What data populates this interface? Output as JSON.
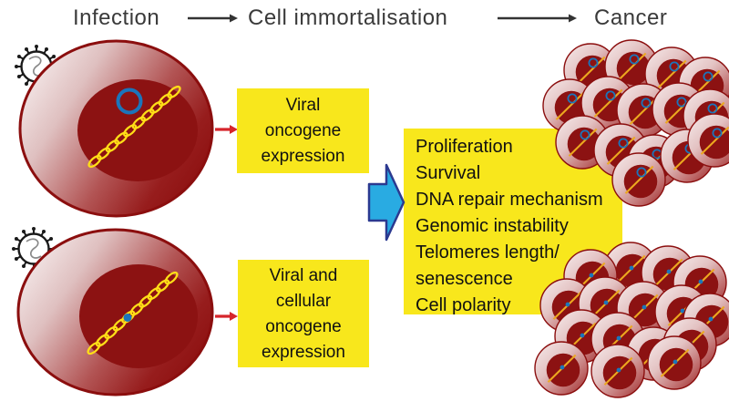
{
  "header": {
    "stages": [
      {
        "label": "Infection"
      },
      {
        "label": "Cell immortalisation"
      },
      {
        "label": "Cancer"
      }
    ]
  },
  "boxes": {
    "viral": {
      "lines": [
        "Viral",
        "oncogene",
        "expression"
      ]
    },
    "viral_cellular": {
      "lines": [
        "Viral and",
        "cellular",
        "oncogene",
        "expression"
      ]
    },
    "hallmarks": {
      "lines": [
        "Proliferation",
        "Survival",
        "DNA repair mechanism",
        "Genomic instability",
        "Telomeres length/",
        "senescence",
        "Cell polarity"
      ]
    }
  },
  "icon_names": [
    "virus-icon",
    "dna-strand-icon",
    "episome-ring-icon",
    "integrated-dna-dot-icon",
    "flow-arrow-icon",
    "red-arrow-icon",
    "block-arrow-icon",
    "infected-cell",
    "cancer-cell-cluster"
  ],
  "colors": {
    "background": "#FFFFFF",
    "header_text": "#3A3A3A",
    "box_text": "#111111",
    "accent_yellow": "#F8E71C",
    "cell_border": "#8B0E0E",
    "nucleus_red": "#8C1212",
    "dna_yellow": "#FFDE17",
    "small_dna_orange": "#ECA81F",
    "episome_blue": "#1B75BB",
    "red_arrow": "#D6252B",
    "block_arrow_fill": "#29ABE2",
    "block_arrow_stroke": "#2B3990",
    "virus_outline": "#1A1A1A",
    "header_arrow": "#333333"
  }
}
